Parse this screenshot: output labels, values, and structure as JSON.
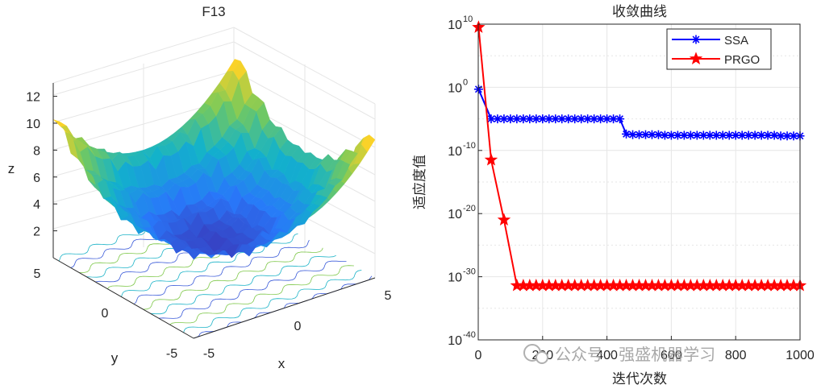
{
  "chart_data": [
    {
      "type": "surface3d",
      "title": "F13",
      "xlabel": "x",
      "ylabel": "y",
      "zlabel": "z",
      "x_ticks": [
        "-5",
        "0",
        "5"
      ],
      "y_ticks": [
        "5",
        "0",
        "-5"
      ],
      "z_ticks": [
        "2",
        "4",
        "6",
        "8",
        "10",
        "12"
      ],
      "xlim": [
        -5,
        5
      ],
      "ylim": [
        -5,
        5
      ],
      "zlim": [
        0,
        13
      ]
    },
    {
      "type": "line",
      "title": "收敛曲线",
      "xlabel": "迭代次数",
      "ylabel": "适应度值",
      "yscale": "log",
      "xlim": [
        0,
        1000
      ],
      "ylim_exp": [
        -40,
        10
      ],
      "x_ticks": [
        "0",
        "200",
        "400",
        "600",
        "800",
        "1000"
      ],
      "y_tick_exps": [
        "10",
        "0",
        "-10",
        "-20",
        "-30",
        "-40"
      ],
      "y_tick_base": "10",
      "legend_position": "top-right",
      "series": [
        {
          "name": "SSA",
          "color": "#0000ff",
          "marker": "asterisk",
          "x": [
            1,
            40,
            60,
            80,
            100,
            120,
            140,
            160,
            180,
            200,
            220,
            240,
            260,
            280,
            300,
            320,
            340,
            360,
            380,
            400,
            420,
            440,
            460,
            480,
            500,
            520,
            540,
            560,
            580,
            600,
            620,
            640,
            660,
            680,
            700,
            720,
            740,
            760,
            780,
            800,
            820,
            840,
            860,
            880,
            900,
            920,
            940,
            960,
            980,
            1000
          ],
          "log10": [
            -0.3,
            -5.0,
            -5.0,
            -5.0,
            -5.0,
            -5.0,
            -5.0,
            -5.0,
            -5.0,
            -5.0,
            -5.0,
            -5.0,
            -5.0,
            -5.0,
            -5.0,
            -5.0,
            -5.0,
            -5.0,
            -5.0,
            -5.0,
            -5.0,
            -5.0,
            -7.4,
            -7.5,
            -7.5,
            -7.5,
            -7.5,
            -7.5,
            -7.6,
            -7.6,
            -7.6,
            -7.6,
            -7.6,
            -7.6,
            -7.6,
            -7.6,
            -7.6,
            -7.6,
            -7.6,
            -7.6,
            -7.6,
            -7.6,
            -7.6,
            -7.6,
            -7.6,
            -7.6,
            -7.7,
            -7.7,
            -7.7,
            -7.7
          ],
          "marker_every": 20
        },
        {
          "name": "PRGO",
          "color": "#ff0000",
          "marker": "pentagram",
          "x": [
            1,
            40,
            80,
            120,
            140,
            160,
            180,
            200,
            220,
            240,
            260,
            280,
            300,
            320,
            340,
            360,
            380,
            400,
            420,
            440,
            460,
            480,
            500,
            520,
            540,
            560,
            580,
            600,
            620,
            640,
            660,
            680,
            700,
            720,
            740,
            760,
            780,
            800,
            820,
            840,
            860,
            880,
            900,
            920,
            940,
            960,
            980,
            1000
          ],
          "log10": [
            9.5,
            -11.5,
            -21.0,
            -31.4,
            -31.4,
            -31.4,
            -31.4,
            -31.4,
            -31.4,
            -31.4,
            -31.4,
            -31.4,
            -31.4,
            -31.4,
            -31.4,
            -31.4,
            -31.4,
            -31.4,
            -31.4,
            -31.4,
            -31.4,
            -31.4,
            -31.4,
            -31.4,
            -31.4,
            -31.4,
            -31.4,
            -31.4,
            -31.4,
            -31.4,
            -31.4,
            -31.4,
            -31.4,
            -31.4,
            -31.4,
            -31.4,
            -31.4,
            -31.4,
            -31.4,
            -31.4,
            -31.4,
            -31.4,
            -31.4,
            -31.4,
            -31.4,
            -31.4,
            -31.4,
            -31.4
          ],
          "marker_every": 20
        }
      ]
    }
  ],
  "watermark": {
    "text": "公众号 · 强盛机器学习"
  }
}
